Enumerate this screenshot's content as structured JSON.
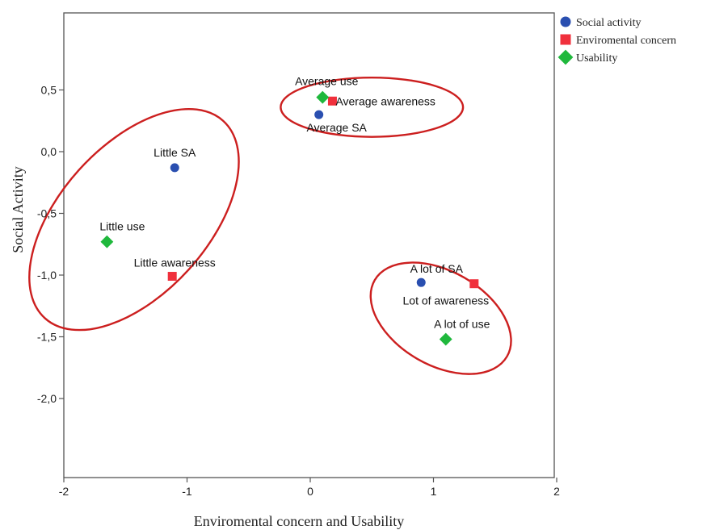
{
  "chart_data": {
    "type": "scatter",
    "title": "",
    "xlabel": "Enviromental concern and Usability",
    "ylabel": "Social Activity",
    "xlim": [
      -2,
      2
    ],
    "ylim": [
      -2.7,
      1.1
    ],
    "xticks": [
      "-2",
      "-1",
      "0",
      "1",
      "2"
    ],
    "yticks": [
      "0,5",
      "0,0",
      "-0,5",
      "-1,0",
      "-1,5",
      "-2,0"
    ],
    "grid": false,
    "legend_position": "top-right, outside plot",
    "series": [
      {
        "name": "Social activity",
        "marker": "circle",
        "color": "#2a4fb0",
        "points": [
          {
            "x": -1.1,
            "y": -0.13,
            "label": "Little SA"
          },
          {
            "x": 0.07,
            "y": 0.3,
            "label": "Average SA"
          },
          {
            "x": 0.9,
            "y": -1.06,
            "label": "A lot of SA"
          }
        ]
      },
      {
        "name": "Enviromental concern",
        "marker": "square",
        "color": "#f0303c",
        "points": [
          {
            "x": -1.12,
            "y": -1.01,
            "label": "Little awareness"
          },
          {
            "x": 0.18,
            "y": 0.41,
            "label": "Average awareness"
          },
          {
            "x": 1.33,
            "y": -1.07,
            "label": "Lot of awareness"
          }
        ]
      },
      {
        "name": "Usability",
        "marker": "diamond",
        "color": "#1fb83c",
        "points": [
          {
            "x": -1.65,
            "y": -0.73,
            "label": "Little use"
          },
          {
            "x": 0.1,
            "y": 0.44,
            "label": "Average use"
          },
          {
            "x": 1.1,
            "y": -1.52,
            "label": "A lot of use"
          }
        ]
      }
    ],
    "clusters": {
      "color": "#cc1f1f",
      "items": [
        {
          "cx": -1.43,
          "cy": -0.55,
          "rx": 1.08,
          "ry": 0.6,
          "rotate": -48
        },
        {
          "cx": 0.5,
          "cy": 0.36,
          "rx": 0.74,
          "ry": 0.24,
          "rotate": 0
        },
        {
          "cx": 1.06,
          "cy": -1.35,
          "rx": 0.62,
          "ry": 0.38,
          "rotate": 30
        }
      ]
    }
  }
}
